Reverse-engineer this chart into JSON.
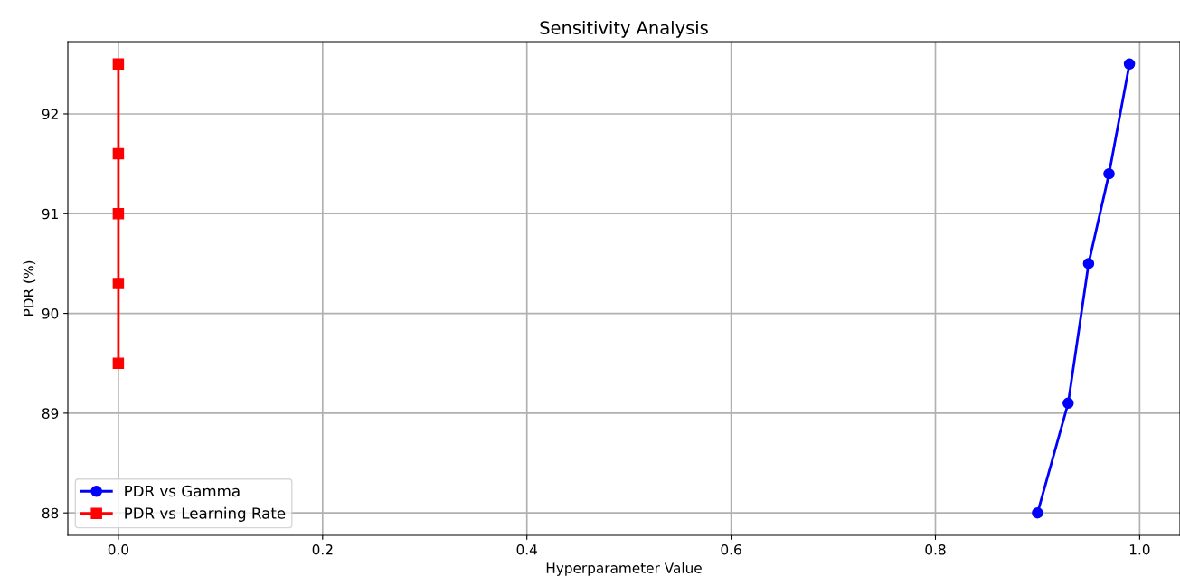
{
  "chart_data": {
    "type": "line",
    "title": "Sensitivity Analysis",
    "xlabel": "Hyperparameter Value",
    "ylabel": "PDR (%)",
    "series": [
      {
        "name": "PDR vs Gamma",
        "color": "#0000ff",
        "marker": "circle",
        "x": [
          0.9,
          0.93,
          0.95,
          0.97,
          0.99
        ],
        "values": [
          88.0,
          89.1,
          90.5,
          91.4,
          92.5
        ]
      },
      {
        "name": "PDR vs Learning Rate",
        "color": "#ff0000",
        "marker": "square",
        "x": [
          0,
          0,
          0,
          0,
          0
        ],
        "values": [
          89.5,
          90.3,
          91.0,
          91.6,
          92.5
        ]
      }
    ],
    "xlim": [
      -0.0495,
      1.0395
    ],
    "ylim": [
      87.775,
      92.725
    ],
    "xticks": [
      {
        "value": 0,
        "label": "0.0"
      },
      0.2,
      0.4,
      0.6,
      0.8,
      {
        "value": 1,
        "label": "1.0"
      }
    ],
    "yticks": [
      88,
      89,
      90,
      91,
      92
    ],
    "grid": true,
    "legend": "bottom left",
    "line_style": "solid"
  }
}
